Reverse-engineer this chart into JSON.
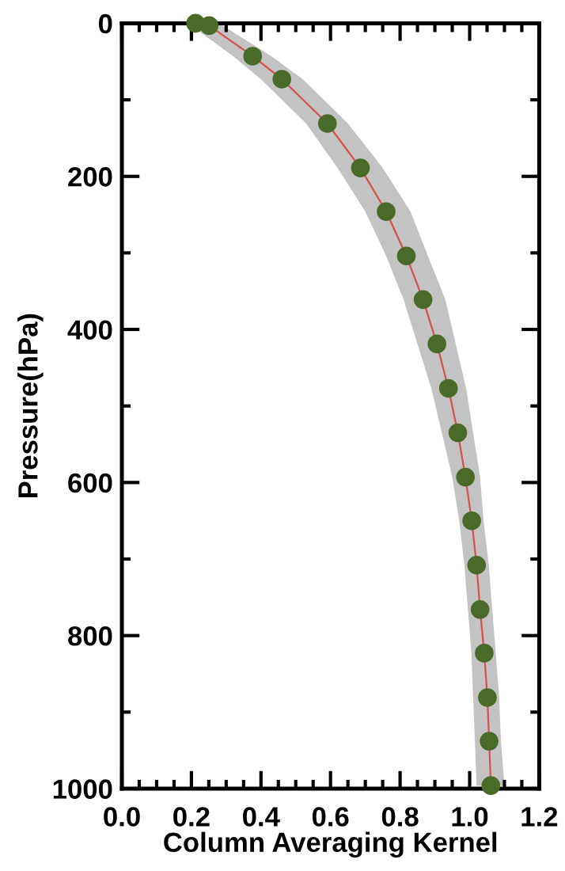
{
  "chart_data": {
    "type": "line",
    "orientation": "horizontal",
    "xlabel": "Column Averaging Kernel",
    "ylabel": "Pressure(hPa)",
    "x": [
      0,
      3,
      43,
      73,
      131,
      189,
      246,
      304,
      361,
      419,
      477,
      535,
      593,
      650,
      708,
      766,
      823,
      881,
      938,
      996
    ],
    "series": [
      {
        "color": "#d9504a",
        "values": [
          0.212,
          0.251,
          0.376,
          0.46,
          0.591,
          0.686,
          0.76,
          0.818,
          0.866,
          0.906,
          0.939,
          0.966,
          0.988,
          1.006,
          1.02,
          1.03,
          1.042,
          1.051,
          1.056,
          1.061
        ],
        "lower": [
          0.16,
          0.2,
          0.32,
          0.4,
          0.53,
          0.62,
          0.7,
          0.76,
          0.81,
          0.85,
          0.89,
          0.92,
          0.95,
          0.97,
          0.985,
          0.995,
          1.005,
          1.01,
          1.015,
          1.02
        ],
        "upper": [
          0.24,
          0.29,
          0.43,
          0.52,
          0.65,
          0.75,
          0.83,
          0.88,
          0.93,
          0.96,
          0.99,
          1.01,
          1.03,
          1.04,
          1.055,
          1.065,
          1.075,
          1.085,
          1.09,
          1.1
        ]
      }
    ],
    "marker": "circle",
    "line_style": "solid",
    "grid": false,
    "xlim": [
      0,
      1.2
    ],
    "ylim": [
      1000,
      0
    ],
    "xticks": [
      {
        "value": 0,
        "label": "0.0"
      },
      {
        "value": 0.05,
        "label": null
      },
      {
        "value": 0.1,
        "label": null
      },
      {
        "value": 0.15,
        "label": null
      },
      {
        "value": 0.2,
        "label": "0.2"
      },
      {
        "value": 0.25,
        "label": null
      },
      {
        "value": 0.3,
        "label": null
      },
      {
        "value": 0.35,
        "label": null
      },
      {
        "value": 0.4,
        "label": "0.4"
      },
      {
        "value": 0.45,
        "label": null
      },
      {
        "value": 0.5,
        "label": null
      },
      {
        "value": 0.55,
        "label": null
      },
      {
        "value": 0.6,
        "label": "0.6"
      },
      {
        "value": 0.65,
        "label": null
      },
      {
        "value": 0.7,
        "label": null
      },
      {
        "value": 0.75,
        "label": null
      },
      {
        "value": 0.8,
        "label": "0.8"
      },
      {
        "value": 0.85,
        "label": null
      },
      {
        "value": 0.9,
        "label": null
      },
      {
        "value": 0.95,
        "label": null
      },
      {
        "value": 1.0,
        "label": "1.0"
      },
      {
        "value": 1.05,
        "label": null
      },
      {
        "value": 1.1,
        "label": null
      },
      {
        "value": 1.15,
        "label": null
      },
      {
        "value": 1.2,
        "label": "1.2"
      }
    ],
    "yticks": [
      0,
      {
        "value": 100,
        "label": null
      },
      200,
      {
        "value": 300,
        "label": null
      },
      400,
      {
        "value": 500,
        "label": null
      },
      600,
      {
        "value": 700,
        "label": null
      },
      800,
      {
        "value": 900,
        "label": null
      },
      1000
    ]
  }
}
